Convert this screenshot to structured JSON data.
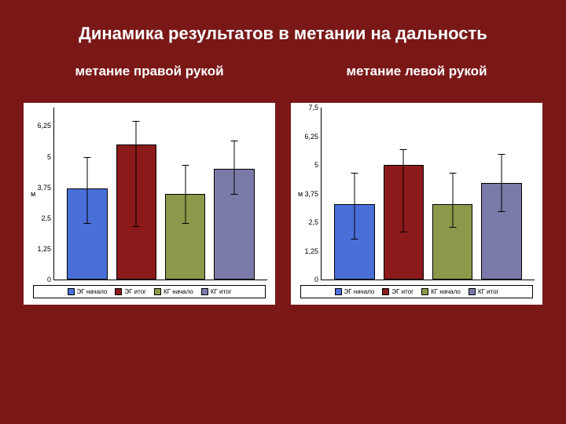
{
  "background_color": "#7a1818",
  "title": "Динамика результатов в метании на дальность",
  "title_color": "#ffffff",
  "title_fontsize": 22,
  "subtitle_fontsize": 17,
  "charts": {
    "left": {
      "subtitle": "метание правой рукой",
      "type": "bar",
      "background_color": "#ffffff",
      "ylabel": "м",
      "ylim": [
        0,
        7.0
      ],
      "yticks": [
        0,
        1.25,
        2.5,
        3.75,
        5,
        6.25
      ],
      "ytick_labels": [
        "0",
        "1,25",
        "2,5",
        "3,75",
        "5",
        "6,25"
      ],
      "bars": [
        {
          "label": "ЭГ начало",
          "value": 3.7,
          "color": "#4a6fd8",
          "err_low": 2.3,
          "err_high": 5.0
        },
        {
          "label": "ЭГ итог",
          "value": 5.5,
          "color": "#8c1a1a",
          "err_low": 2.2,
          "err_high": 6.5
        },
        {
          "label": "КГ начало",
          "value": 3.5,
          "color": "#8a9a4a",
          "err_low": 2.3,
          "err_high": 4.7
        },
        {
          "label": "КГ итог",
          "value": 4.5,
          "color": "#7a7aa8",
          "err_low": 3.5,
          "err_high": 5.7
        }
      ],
      "legend_labels": [
        "ЭГ начало",
        "ЭГ итог",
        "КГ начало",
        "КГ итог"
      ],
      "legend_colors": [
        "#4a6fd8",
        "#8c1a1a",
        "#8a9a4a",
        "#7a7aa8"
      ],
      "bar_border_color": "#000000",
      "axis_color": "#000000",
      "label_fontsize": 9
    },
    "right": {
      "subtitle": "метание левой рукой",
      "type": "bar",
      "background_color": "#ffffff",
      "ylabel": "м",
      "ylim": [
        0,
        7.5
      ],
      "yticks": [
        0,
        1.25,
        2.5,
        3.75,
        5,
        6.25,
        7.5
      ],
      "ytick_labels": [
        "0",
        "1,25",
        "2,5",
        "3,75",
        "5",
        "6,25",
        "7,5"
      ],
      "bars": [
        {
          "label": "ЭГ начало",
          "value": 3.3,
          "color": "#4a6fd8",
          "err_low": 1.8,
          "err_high": 4.7
        },
        {
          "label": "ЭГ итог",
          "value": 5.0,
          "color": "#8c1a1a",
          "err_low": 2.1,
          "err_high": 5.7
        },
        {
          "label": "КГ начало",
          "value": 3.3,
          "color": "#8a9a4a",
          "err_low": 2.3,
          "err_high": 4.7
        },
        {
          "label": "КГ итог",
          "value": 4.2,
          "color": "#7a7aa8",
          "err_low": 3.0,
          "err_high": 5.5
        }
      ],
      "legend_labels": [
        "ЭГ начало",
        "ЭГ итог",
        "КГ начало",
        "КГ итог"
      ],
      "legend_colors": [
        "#4a6fd8",
        "#8c1a1a",
        "#8a9a4a",
        "#7a7aa8"
      ],
      "bar_border_color": "#000000",
      "axis_color": "#000000",
      "label_fontsize": 9
    }
  }
}
